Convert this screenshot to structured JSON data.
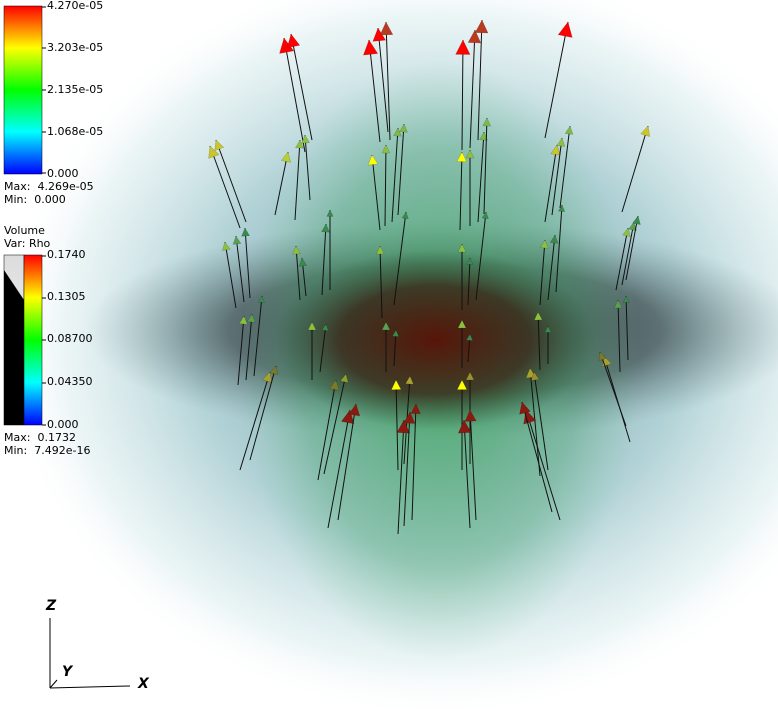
{
  "vector_legend": {
    "ticks": [
      "4.270e-05",
      "3.203e-05",
      "2.135e-05",
      "1.068e-05",
      "0.000"
    ],
    "max_label": "Max:",
    "max_value": "4.269e-05",
    "min_label": "Min:",
    "min_value": "0.000"
  },
  "volume_legend": {
    "title": "Volume",
    "var": "Var: Rho",
    "ticks": [
      "0.1740",
      "0.1305",
      "0.08700",
      "0.04350",
      "0.000"
    ],
    "max_label": "Max:",
    "max_value": "0.1732",
    "min_label": "Min:",
    "min_value": "7.492e-16"
  },
  "axes": {
    "x": "X",
    "y": "Y",
    "z": "Z"
  },
  "colors": {
    "high": "#ff0000",
    "mid_high": "#ffff00",
    "mid": "#00ff00",
    "mid_low": "#00ffff",
    "low": "#0000ff",
    "volume_core": "#3a0a05",
    "volume_mid": "#2f6b45",
    "volume_outer": "#b9dbe0"
  }
}
